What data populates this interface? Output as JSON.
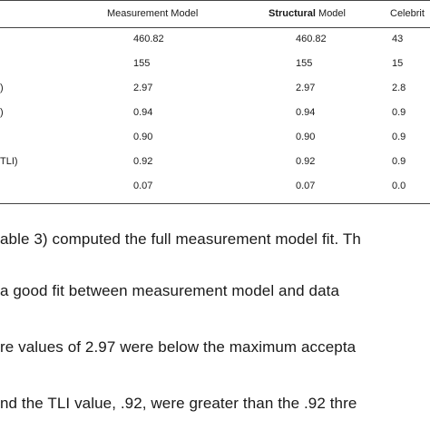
{
  "table": {
    "headers": {
      "label": "",
      "measurement_model": "Measurement Model",
      "structural_bold": "Structural",
      "structural_rest": " Model",
      "celebrity": "Celebrit"
    },
    "rows": [
      {
        "label": "",
        "measurement": "460.82",
        "structural": "460.82",
        "celebrity": "43"
      },
      {
        "label": "",
        "measurement": "155",
        "structural": "155",
        "celebrity": "15"
      },
      {
        "label": ")",
        "measurement": "2.97",
        "structural": "2.97",
        "celebrity": "2.8"
      },
      {
        "label": ")",
        "measurement": "0.94",
        "structural": "0.94",
        "celebrity": "0.9"
      },
      {
        "label": "",
        "measurement": "0.90",
        "structural": "0.90",
        "celebrity": "0.9"
      },
      {
        "label": "TLI)",
        "measurement": "0.92",
        "structural": "0.92",
        "celebrity": "0.9"
      },
      {
        "label": "",
        "measurement": "0.07",
        "structural": "0.07",
        "celebrity": "0.0"
      }
    ]
  },
  "paragraphs": [
    "able 3) computed the full measurement model fit. Th",
    " a good fit between measurement model and data",
    "re values of 2.97 were below the maximum accepta",
    "nd the TLI value, .92, were greater than the .92 thre"
  ]
}
